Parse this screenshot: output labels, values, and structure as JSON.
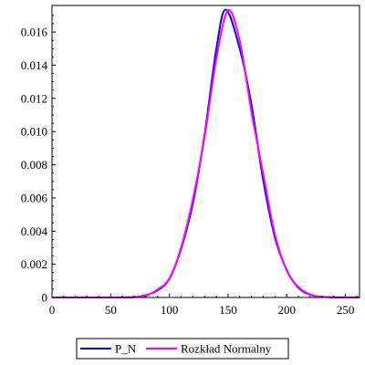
{
  "chart_data": {
    "type": "line",
    "title": "",
    "xlabel": "",
    "ylabel": "",
    "xlim": [
      0,
      262
    ],
    "ylim": [
      0,
      0.0176
    ],
    "x_ticks": [
      0,
      50,
      100,
      150,
      200,
      250
    ],
    "x_tick_labels": [
      "0",
      "50",
      "100",
      "150",
      "200",
      "250"
    ],
    "y_ticks": [
      0,
      0.002,
      0.004,
      0.006,
      0.008,
      0.01,
      0.012,
      0.014,
      0.016
    ],
    "y_tick_labels": [
      "0",
      "0.002",
      "0.004",
      "0.006",
      "0.008",
      "0.010",
      "0.012",
      "0.014",
      "0.016"
    ],
    "grid": false,
    "legend_position": "bottom",
    "series": [
      {
        "name": "P_N",
        "color": "#0000ff",
        "x": [
          0,
          50,
          70,
          80,
          90,
          100,
          110,
          120,
          130,
          140,
          148,
          160,
          170,
          180,
          190,
          200,
          210,
          220,
          230,
          250,
          262
        ],
        "y": [
          0,
          0,
          2e-05,
          0.00013,
          0.00043,
          0.00112,
          0.00293,
          0.00567,
          0.0098,
          0.01498,
          0.01735,
          0.01498,
          0.0116,
          0.00705,
          0.0036,
          0.00165,
          0.00058,
          0.00017,
          4e-05,
          0,
          0
        ]
      },
      {
        "name": "Rozkład Normalny",
        "color": "#ff00ff",
        "x": [
          0,
          50,
          70,
          80,
          90,
          100,
          110,
          120,
          130,
          140,
          150,
          160,
          170,
          180,
          190,
          200,
          210,
          220,
          230,
          250,
          262
        ],
        "y": [
          0,
          0,
          2e-05,
          0.00011,
          0.00048,
          0.00114,
          0.00301,
          0.0059,
          0.00967,
          0.01437,
          0.0173,
          0.01545,
          0.01118,
          0.00744,
          0.00378,
          0.00163,
          0.00062,
          0.00018,
          4e-05,
          0,
          0
        ]
      }
    ]
  }
}
